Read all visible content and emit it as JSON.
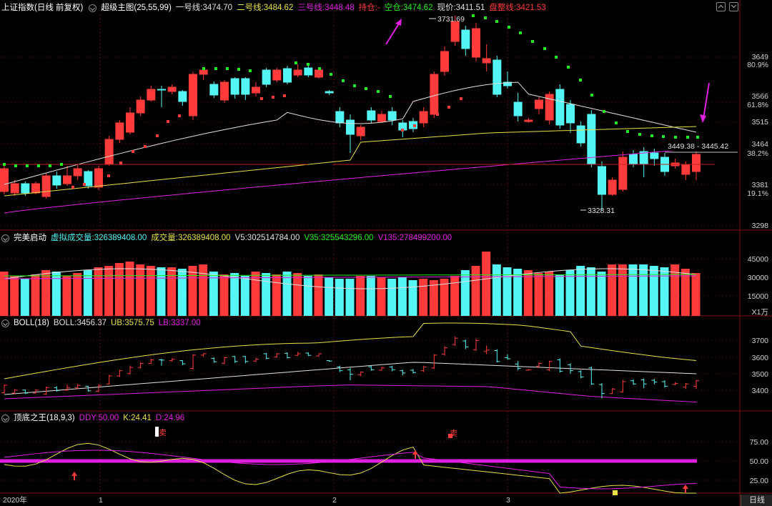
{
  "main": {
    "title": "上证指数(日线 前复权)",
    "indicator": "超级主图(25,55,99)",
    "l1_label": "一号线:",
    "l1_value": "3474.70",
    "l2_label": "二号线:",
    "l2_value": "3484.62",
    "l3_label": "三号线:",
    "l3_value": "3448.48",
    "hold_label": "持仓:",
    "hold_value": "-",
    "empty_label": "空仓:",
    "empty_value": "3474.62",
    "price_label": "现价:",
    "price_value": "3411.51",
    "pz_label": "盘整线:",
    "pz_value": "3421.53",
    "high_label": "3731.69",
    "low_label": "3328.31",
    "range_label": "3449.38 - 3445.42",
    "axis": [
      "3649",
      "80.9%",
      "3566",
      "61.8%",
      "3515",
      "3464",
      "38.2%",
      "3381",
      "19.1%",
      "3298"
    ]
  },
  "vol": {
    "name": "完美启动",
    "v1_label": "虚拟成交量:",
    "v1_value": "326389408.00",
    "v2_label": "成交量:",
    "v2_value": "326389408.00",
    "v3_label": "V5:",
    "v3_value": "302514784.00",
    "v4_label": "V35:",
    "v4_value": "325543296.00",
    "v5_label": "V135:",
    "v5_value": "278499200.00",
    "axis": [
      "45000",
      "30000",
      "15000"
    ],
    "unit": "X1万"
  },
  "boll": {
    "name": "BOLL(18)",
    "b_label": "BOLL:",
    "b_value": "3456.37",
    "ub_label": "UB:",
    "ub_value": "3575.75",
    "lb_label": "LB:",
    "lb_value": "3337.00",
    "axis": [
      "3700",
      "3600",
      "3500",
      "3400"
    ]
  },
  "kdj": {
    "name": "顶底之王(18,9,3)",
    "ddy_label": "DDY:",
    "ddy_value": "50.00",
    "k_label": "K:",
    "k_value": "24.41",
    "d_label": "D:",
    "d_value": "24.96",
    "sell_label": "卖",
    "axis": [
      "75.00",
      "50.00",
      "25.00"
    ]
  },
  "xaxis": [
    "2020年",
    "1",
    "2",
    "3"
  ],
  "period_tab": "日线",
  "colors": {
    "up": "#ff3b3b",
    "down": "#55f5f5",
    "white": "#e0e0e0",
    "yellow": "#e8e14a",
    "magenta": "#e020e0",
    "green": "#22ee22",
    "bg": "#000000"
  }
}
